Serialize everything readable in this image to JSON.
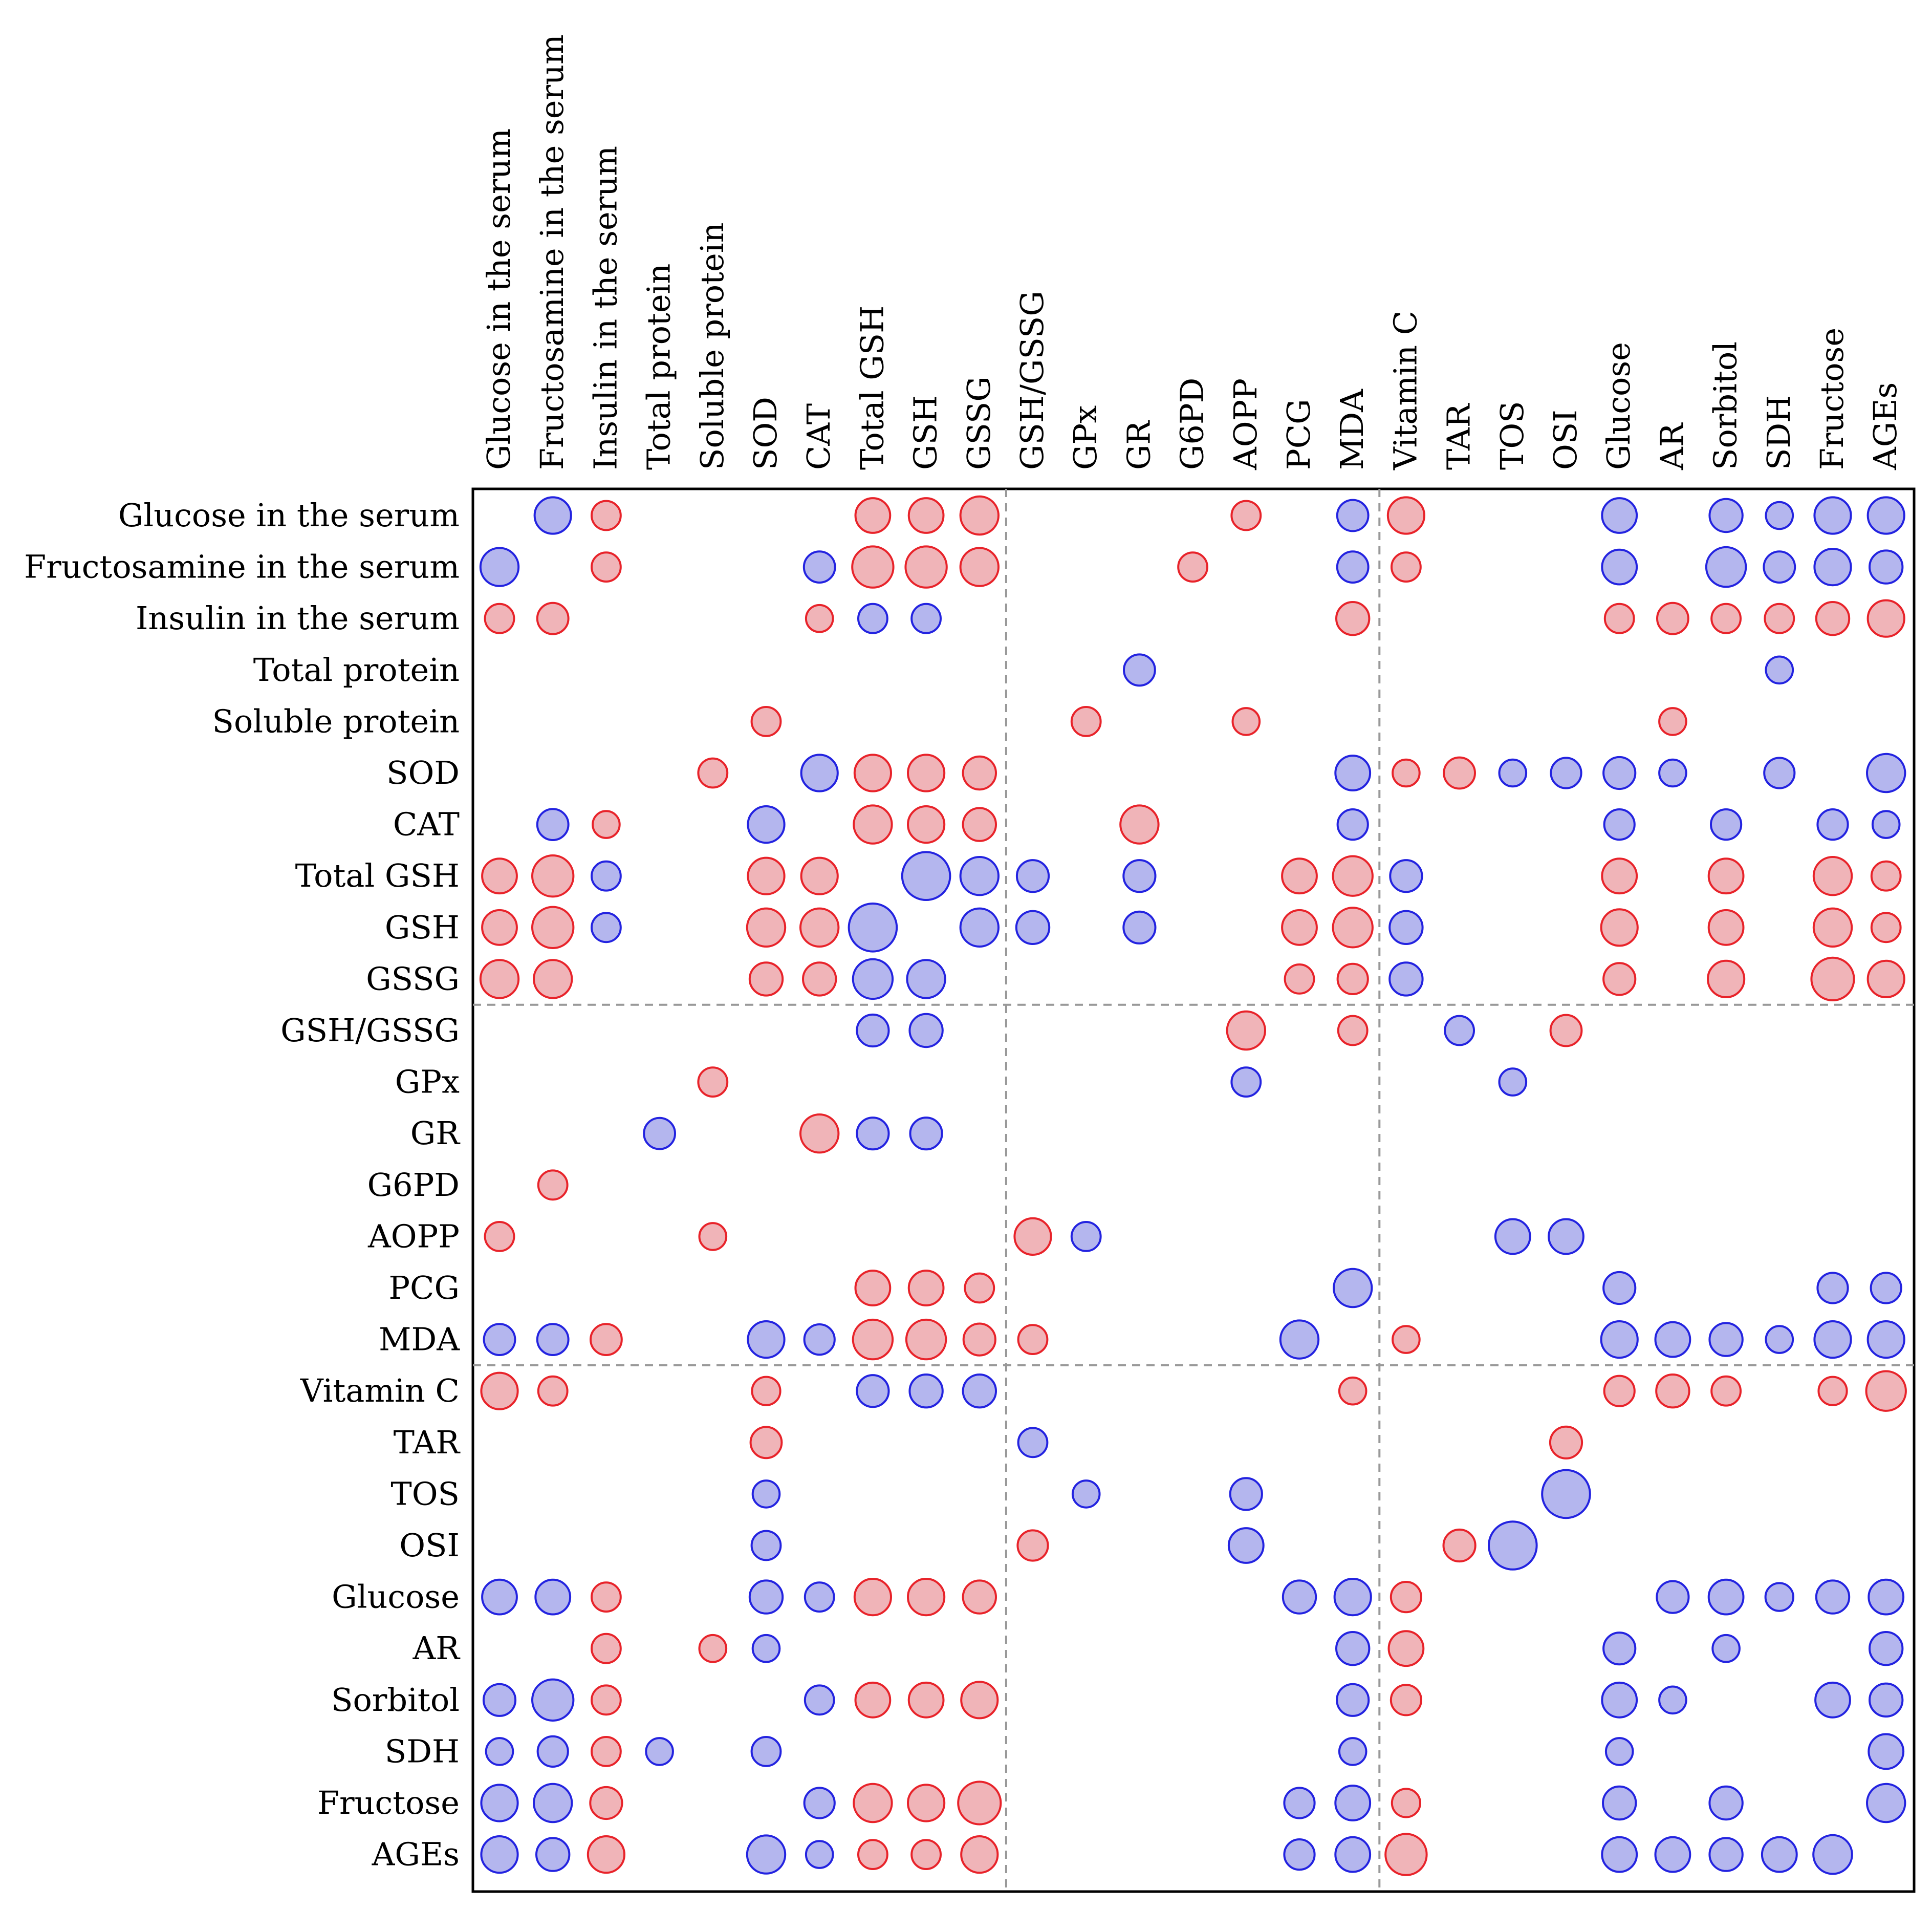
{
  "chart_data": {
    "type": "heatmap",
    "subtype": "correlation bubble matrix",
    "title": "",
    "xlabel": "",
    "ylabel": "",
    "legend": "none",
    "grid": false,
    "group_separators_after_index": [
      9,
      16
    ],
    "colors": {
      "positive": "#e8232a",
      "negative": "#2323e0",
      "positive_fill": "#f0b4b8",
      "negative_fill": "#b4b6ee",
      "separator": "#999999"
    },
    "variables": [
      "Glucose in the serum",
      "Fructosamine in the serum",
      "Insulin in the serum",
      "Total protein",
      "Soluble protein",
      "SOD",
      "CAT",
      "Total GSH",
      "GSH",
      "GSSG",
      "GSH/GSSG",
      "GPx",
      "GR",
      "G6PD",
      "AOPP",
      "PCG",
      "MDA",
      "Vitamin C",
      "TAR",
      "TOS",
      "OSI",
      "Glucose",
      "AR",
      "Sorbitol",
      "SDH",
      "Fructose",
      "AGEs"
    ],
    "rows": [
      [
        null,
        -0.55,
        0.35,
        null,
        null,
        null,
        null,
        0.5,
        0.5,
        0.6,
        null,
        null,
        null,
        null,
        0.35,
        null,
        -0.4,
        0.55,
        null,
        null,
        null,
        -0.5,
        null,
        -0.45,
        -0.3,
        -0.55,
        -0.55
      ],
      [
        -0.6,
        null,
        0.35,
        null,
        null,
        null,
        -0.4,
        0.7,
        0.7,
        0.6,
        null,
        null,
        null,
        0.35,
        null,
        null,
        -0.4,
        0.35,
        null,
        null,
        null,
        -0.5,
        null,
        -0.65,
        -0.4,
        -0.55,
        -0.45
      ],
      [
        0.35,
        0.4,
        null,
        null,
        null,
        null,
        0.3,
        -0.35,
        -0.35,
        null,
        null,
        null,
        null,
        null,
        null,
        null,
        0.45,
        null,
        null,
        null,
        null,
        0.35,
        0.4,
        0.35,
        0.35,
        0.45,
        0.55
      ],
      [
        null,
        null,
        null,
        null,
        null,
        null,
        null,
        null,
        null,
        null,
        null,
        null,
        -0.4,
        null,
        null,
        null,
        null,
        null,
        null,
        null,
        null,
        null,
        null,
        null,
        -0.3,
        null,
        null
      ],
      [
        null,
        null,
        null,
        null,
        null,
        0.35,
        null,
        null,
        null,
        null,
        null,
        0.35,
        null,
        null,
        0.3,
        null,
        null,
        null,
        null,
        null,
        null,
        null,
        0.3,
        null,
        null,
        null,
        null
      ],
      [
        null,
        null,
        null,
        null,
        0.35,
        null,
        -0.55,
        0.55,
        0.55,
        0.45,
        null,
        null,
        null,
        null,
        null,
        null,
        -0.5,
        0.3,
        0.4,
        -0.3,
        -0.38,
        -0.42,
        -0.3,
        null,
        -0.38,
        null,
        -0.6
      ],
      [
        null,
        -0.4,
        0.3,
        null,
        null,
        -0.55,
        null,
        0.6,
        0.55,
        0.45,
        null,
        null,
        0.6,
        null,
        null,
        null,
        -0.38,
        null,
        null,
        null,
        null,
        -0.38,
        null,
        -0.38,
        null,
        -0.38,
        -0.3
      ],
      [
        0.5,
        0.7,
        -0.35,
        null,
        null,
        0.55,
        0.55,
        null,
        -0.95,
        -0.6,
        -0.42,
        null,
        -0.42,
        null,
        null,
        0.5,
        0.65,
        -0.42,
        null,
        null,
        null,
        0.5,
        null,
        0.5,
        null,
        0.6,
        0.35
      ],
      [
        0.5,
        0.7,
        -0.35,
        null,
        null,
        0.6,
        0.6,
        -0.95,
        null,
        -0.6,
        -0.45,
        null,
        -0.42,
        null,
        null,
        0.5,
        0.65,
        -0.45,
        null,
        null,
        null,
        0.55,
        null,
        0.5,
        null,
        0.6,
        0.35
      ],
      [
        0.6,
        0.6,
        null,
        null,
        null,
        0.45,
        0.45,
        -0.65,
        -0.6,
        null,
        null,
        null,
        null,
        null,
        null,
        0.35,
        0.38,
        -0.45,
        null,
        null,
        null,
        0.42,
        null,
        0.55,
        null,
        0.75,
        0.55
      ],
      [
        null,
        null,
        null,
        null,
        null,
        null,
        null,
        -0.42,
        -0.45,
        null,
        null,
        null,
        null,
        null,
        0.6,
        null,
        0.35,
        null,
        -0.35,
        null,
        0.4,
        null,
        null,
        null,
        null,
        null,
        null
      ],
      [
        null,
        null,
        null,
        null,
        0.35,
        null,
        null,
        null,
        null,
        null,
        null,
        null,
        null,
        null,
        -0.35,
        null,
        null,
        null,
        null,
        -0.3,
        null,
        null,
        null,
        null,
        null,
        null,
        null
      ],
      [
        null,
        null,
        null,
        -0.4,
        null,
        null,
        0.6,
        -0.42,
        -0.42,
        null,
        null,
        null,
        null,
        null,
        null,
        null,
        null,
        null,
        null,
        null,
        null,
        null,
        null,
        null,
        null,
        null,
        null
      ],
      [
        null,
        0.35,
        null,
        null,
        null,
        null,
        null,
        null,
        null,
        null,
        null,
        null,
        null,
        null,
        null,
        null,
        null,
        null,
        null,
        null,
        null,
        null,
        null,
        null,
        null,
        null,
        null
      ],
      [
        0.35,
        null,
        null,
        null,
        0.3,
        null,
        null,
        null,
        null,
        null,
        0.55,
        -0.35,
        null,
        null,
        null,
        null,
        null,
        null,
        null,
        -0.5,
        -0.5,
        null,
        null,
        null,
        null,
        null,
        null
      ],
      [
        null,
        null,
        null,
        null,
        null,
        null,
        null,
        0.5,
        0.5,
        0.35,
        null,
        null,
        null,
        null,
        null,
        null,
        -0.6,
        null,
        null,
        null,
        null,
        -0.42,
        null,
        null,
        null,
        -0.38,
        -0.38
      ],
      [
        -0.4,
        -0.4,
        0.4,
        null,
        null,
        -0.55,
        -0.38,
        0.65,
        0.65,
        0.42,
        0.35,
        null,
        null,
        null,
        null,
        -0.6,
        null,
        0.3,
        null,
        null,
        null,
        -0.55,
        -0.5,
        -0.45,
        -0.3,
        -0.55,
        -0.55
      ],
      [
        0.55,
        0.35,
        null,
        null,
        null,
        0.33,
        null,
        -0.42,
        -0.45,
        -0.45,
        null,
        null,
        null,
        null,
        null,
        null,
        0.3,
        null,
        null,
        null,
        null,
        0.38,
        0.45,
        0.35,
        null,
        0.33,
        0.65
      ],
      [
        null,
        null,
        null,
        null,
        null,
        0.4,
        null,
        null,
        null,
        null,
        -0.35,
        null,
        null,
        null,
        null,
        null,
        null,
        null,
        null,
        null,
        0.42,
        null,
        null,
        null,
        null,
        null,
        null
      ],
      [
        null,
        null,
        null,
        null,
        null,
        -0.3,
        null,
        null,
        null,
        null,
        null,
        -0.3,
        null,
        null,
        -0.42,
        null,
        null,
        null,
        null,
        null,
        -0.95,
        null,
        null,
        null,
        null,
        null,
        null
      ],
      [
        null,
        null,
        null,
        null,
        null,
        -0.35,
        null,
        null,
        null,
        null,
        0.38,
        null,
        null,
        null,
        -0.5,
        null,
        null,
        null,
        0.42,
        -0.95,
        null,
        null,
        null,
        null,
        null,
        null,
        null
      ],
      [
        -0.5,
        -0.5,
        0.35,
        null,
        null,
        -0.45,
        -0.35,
        0.55,
        0.55,
        0.45,
        null,
        null,
        null,
        null,
        null,
        -0.45,
        -0.55,
        0.38,
        null,
        null,
        null,
        null,
        -0.42,
        -0.5,
        -0.32,
        -0.45,
        -0.5
      ],
      [
        null,
        null,
        0.35,
        null,
        0.3,
        -0.3,
        null,
        null,
        null,
        null,
        null,
        null,
        null,
        null,
        null,
        null,
        -0.45,
        0.5,
        null,
        null,
        null,
        -0.42,
        null,
        -0.3,
        null,
        null,
        -0.45
      ],
      [
        -0.42,
        -0.7,
        0.35,
        null,
        null,
        null,
        -0.35,
        0.5,
        0.5,
        0.55,
        null,
        null,
        null,
        null,
        null,
        null,
        -0.42,
        0.38,
        null,
        null,
        null,
        -0.5,
        -0.3,
        null,
        null,
        -0.5,
        -0.45
      ],
      [
        -0.3,
        -0.38,
        0.35,
        -0.3,
        null,
        -0.35,
        null,
        null,
        null,
        null,
        null,
        null,
        null,
        null,
        null,
        null,
        -0.3,
        null,
        null,
        null,
        null,
        -0.3,
        null,
        null,
        null,
        null,
        -0.5
      ],
      [
        -0.55,
        -0.6,
        0.42,
        null,
        null,
        null,
        -0.38,
        0.6,
        0.55,
        0.75,
        null,
        null,
        null,
        null,
        null,
        -0.38,
        -0.5,
        0.33,
        null,
        null,
        null,
        -0.45,
        null,
        -0.45,
        null,
        null,
        -0.6
      ],
      [
        -0.55,
        -0.45,
        0.55,
        null,
        null,
        -0.6,
        -0.3,
        0.35,
        0.35,
        0.55,
        null,
        null,
        null,
        null,
        null,
        -0.38,
        -0.5,
        0.7,
        null,
        null,
        null,
        -0.5,
        -0.5,
        -0.45,
        -0.5,
        -0.62,
        null
      ]
    ]
  }
}
